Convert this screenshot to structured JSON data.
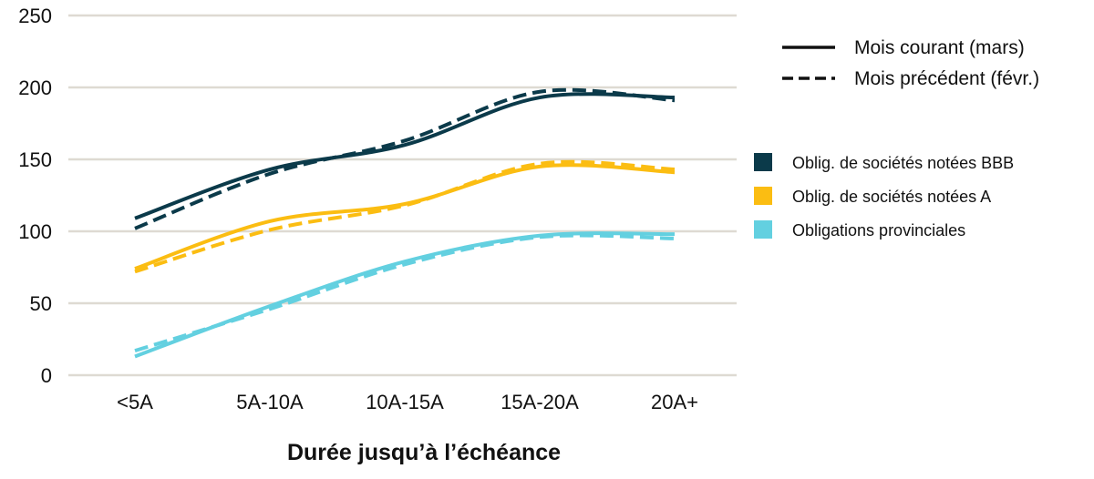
{
  "chart_data": {
    "type": "line",
    "xlabel": "Durée jusqu’à l’échéance",
    "ylabel": "",
    "ylim": [
      0,
      250
    ],
    "yticks": [
      0,
      50,
      100,
      150,
      200,
      250
    ],
    "categories": [
      "<5A",
      "5A-10A",
      "10A-15A",
      "15A-20A",
      "20A+"
    ],
    "grid": "horizontal",
    "legend_position": "right",
    "line_styles": [
      {
        "name": "Mois courant (mars)",
        "dash": "solid"
      },
      {
        "name": "Mois précédent (févr.)",
        "dash": "dashed"
      }
    ],
    "series": [
      {
        "name": "Oblig. de sociétés notées BBB",
        "color": "#0b3a4a",
        "current": [
          109,
          143,
          160,
          193,
          193
        ],
        "previous": [
          102,
          140,
          163,
          197,
          191
        ]
      },
      {
        "name": "Oblig. de sociétés notées A",
        "color": "#fbbd12",
        "current": [
          74,
          107,
          119,
          145,
          141
        ],
        "previous": [
          72,
          101,
          118,
          147,
          143
        ]
      },
      {
        "name": "Obligations provinciales",
        "color": "#63d0e0",
        "current": [
          13,
          48,
          79,
          97,
          98
        ],
        "previous": [
          17,
          46,
          77,
          96,
          95
        ]
      }
    ]
  }
}
